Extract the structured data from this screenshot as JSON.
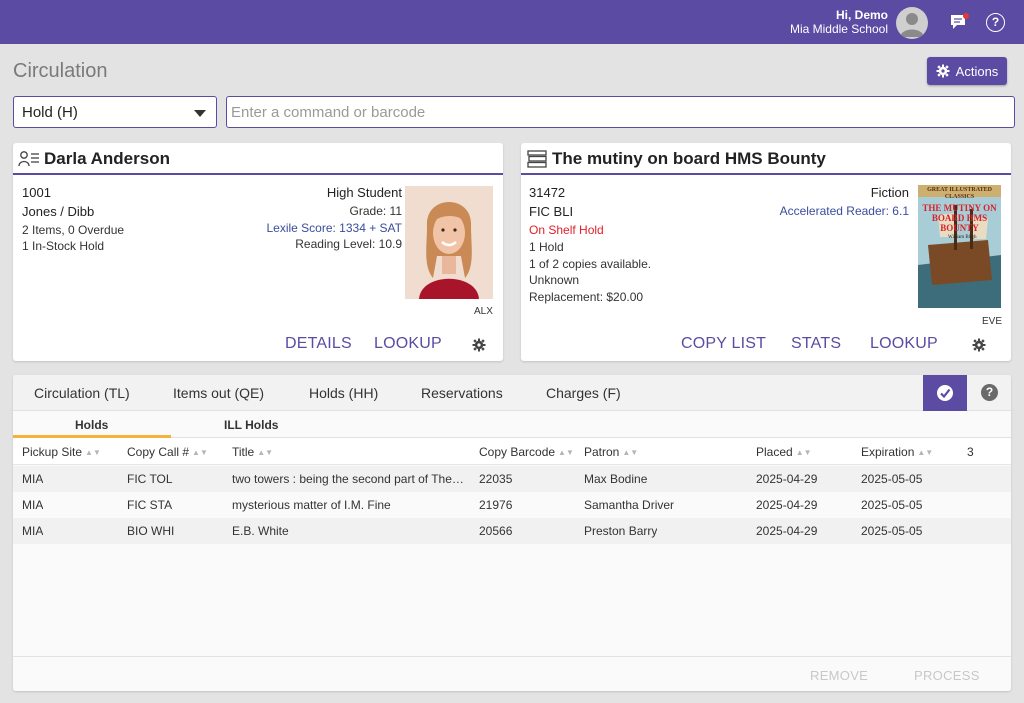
{
  "header": {
    "greeting": "Hi, Demo",
    "school": "Mia Middle School",
    "brand_color": "#5b4ba3"
  },
  "page": {
    "title": "Circulation",
    "actions_label": "Actions"
  },
  "command": {
    "mode": "Hold (H)",
    "placeholder": "Enter a command or barcode"
  },
  "patron": {
    "name": "Darla Anderson",
    "barcode": "1001",
    "homeroom": "Jones / Dibb",
    "items_summary": "2 Items, 0 Overdue",
    "holds_summary": "1 In-Stock Hold",
    "patron_type": "High Student",
    "grade": "Grade: 11",
    "lexile": "Lexile Score: 1334 + SAT",
    "reading_level": "Reading Level: 10.9",
    "photo_caption": "ALX",
    "buttons": {
      "details": "DETAILS",
      "lookup": "LOOKUP"
    }
  },
  "title": {
    "name": "The mutiny on board HMS Bounty",
    "barcode": "31472",
    "call_number": "FIC BLI",
    "status": "On Shelf Hold",
    "holds": "1 Hold",
    "availability": "1 of 2 copies available.",
    "location": "Unknown",
    "replacement": "Replacement: $20.00",
    "genre": "Fiction",
    "ar": "Accelerated Reader: 6.1",
    "cover_caption": "EVE",
    "cover_series": "GREAT ILLUSTRATED CLASSICS",
    "cover_title": "THE MUTINY ON BOARD HMS BOUNTY",
    "cover_author": "William Bligh",
    "buttons": {
      "copy_list": "COPY LIST",
      "stats": "STATS",
      "lookup": "LOOKUP"
    }
  },
  "panel": {
    "tabs": [
      "Circulation (TL)",
      "Items out (QE)",
      "Holds (HH)",
      "Reservations",
      "Charges (F)"
    ],
    "subtabs": [
      "Holds",
      "ILL Holds"
    ],
    "columns": [
      "Pickup Site",
      "Copy Call #",
      "Title",
      "Copy Barcode",
      "Patron",
      "Placed",
      "Expiration",
      "3"
    ],
    "rows": [
      [
        "MIA",
        "FIC TOL",
        "two towers : being the second part of The lord of the rings",
        "22035",
        "Max Bodine",
        "2025-04-29",
        "2025-05-05"
      ],
      [
        "MIA",
        "FIC STA",
        "mysterious matter of I.M. Fine",
        "21976",
        "Samantha Driver",
        "2025-04-29",
        "2025-05-05"
      ],
      [
        "MIA",
        "BIO WHI",
        "E.B. White",
        "20566",
        "Preston Barry",
        "2025-04-29",
        "2025-05-05"
      ]
    ],
    "footer": {
      "remove": "REMOVE",
      "process": "PROCESS"
    }
  }
}
